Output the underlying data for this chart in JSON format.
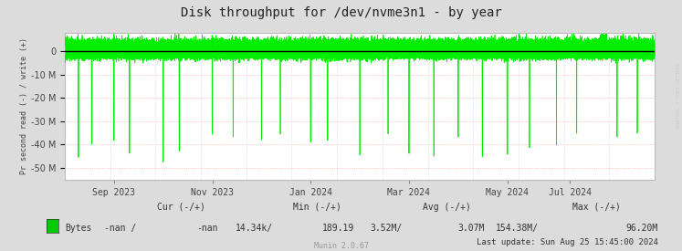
{
  "title": "Disk throughput for /dev/nvme3n1 - by year",
  "ylabel": "Pr second read (-) / write (+)",
  "bg_color": "#DCDCDC",
  "plot_bg_color": "#FFFFFF",
  "line_color": "#00EE00",
  "zero_line_color": "#000000",
  "ylim": [
    -55000000,
    8000000
  ],
  "yticks": [
    0,
    -10000000,
    -20000000,
    -30000000,
    -40000000,
    -50000000
  ],
  "xtick_labels": [
    "Sep 2023",
    "Nov 2023",
    "Jan 2024",
    "Mar 2024",
    "May 2024",
    "Jul 2024"
  ],
  "legend_label": "Bytes",
  "legend_color": "#00CC00",
  "cur_neg": "-nan /",
  "cur_pos": "-nan",
  "min_neg": "14.34k/",
  "min_pos": "189.19",
  "avg_neg": "3.52M/",
  "avg_pos": "3.07M",
  "max_neg": "154.38M/",
  "max_pos": "96.20M",
  "last_update": "Last update: Sun Aug 25 15:45:00 2024",
  "munin_version": "Munin 2.0.67",
  "watermark": "RRDTOOL / TOBI OETIKER",
  "figsize": [
    7.47,
    2.75
  ],
  "dpi": 100
}
